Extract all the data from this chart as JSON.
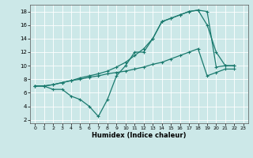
{
  "bg_color": "#cce8e8",
  "grid_color": "#ffffff",
  "line_color": "#1a7a6e",
  "marker": "+",
  "markersize": 3,
  "linewidth": 0.9,
  "xlabel": "Humidex (Indice chaleur)",
  "xlim": [
    -0.5,
    23.5
  ],
  "ylim": [
    1.5,
    19
  ],
  "xticks": [
    0,
    1,
    2,
    3,
    4,
    5,
    6,
    7,
    8,
    9,
    10,
    11,
    12,
    13,
    14,
    15,
    16,
    17,
    18,
    19,
    20,
    21,
    22,
    23
  ],
  "yticks": [
    2,
    4,
    6,
    8,
    10,
    12,
    14,
    16,
    18
  ],
  "series": [
    {
      "x": [
        0,
        1,
        2,
        3,
        4,
        5,
        6,
        7,
        8,
        9,
        10,
        11,
        12,
        13,
        14,
        15,
        16,
        17,
        18,
        19,
        20,
        21,
        22
      ],
      "y": [
        7,
        7,
        7.2,
        7.5,
        7.8,
        8.2,
        8.5,
        8.8,
        9.2,
        9.8,
        10.5,
        11.5,
        12.5,
        14,
        16.5,
        17,
        17.5,
        18,
        18.2,
        18,
        9.8,
        10,
        10
      ]
    },
    {
      "x": [
        0,
        1,
        2,
        3,
        4,
        5,
        6,
        7,
        8,
        9,
        10,
        11,
        12,
        13,
        14,
        15,
        16,
        17,
        18,
        19,
        20,
        21,
        22
      ],
      "y": [
        7,
        7,
        7.2,
        7.5,
        7.8,
        8.0,
        8.3,
        8.5,
        8.8,
        9.0,
        9.2,
        9.5,
        9.8,
        10.2,
        10.5,
        11,
        11.5,
        12,
        12.5,
        8.5,
        9,
        9.5,
        9.5
      ]
    },
    {
      "x": [
        0,
        1,
        2,
        3,
        4,
        5,
        6,
        7,
        8,
        9,
        10,
        11,
        12,
        13,
        14,
        15,
        16,
        17,
        18,
        19,
        20,
        21,
        22
      ],
      "y": [
        7,
        7,
        6.5,
        6.5,
        5.5,
        5,
        4,
        2.5,
        5,
        8.5,
        10,
        12,
        12,
        14,
        16.5,
        17,
        17.5,
        18,
        18.2,
        16,
        12,
        10,
        10
      ]
    }
  ]
}
